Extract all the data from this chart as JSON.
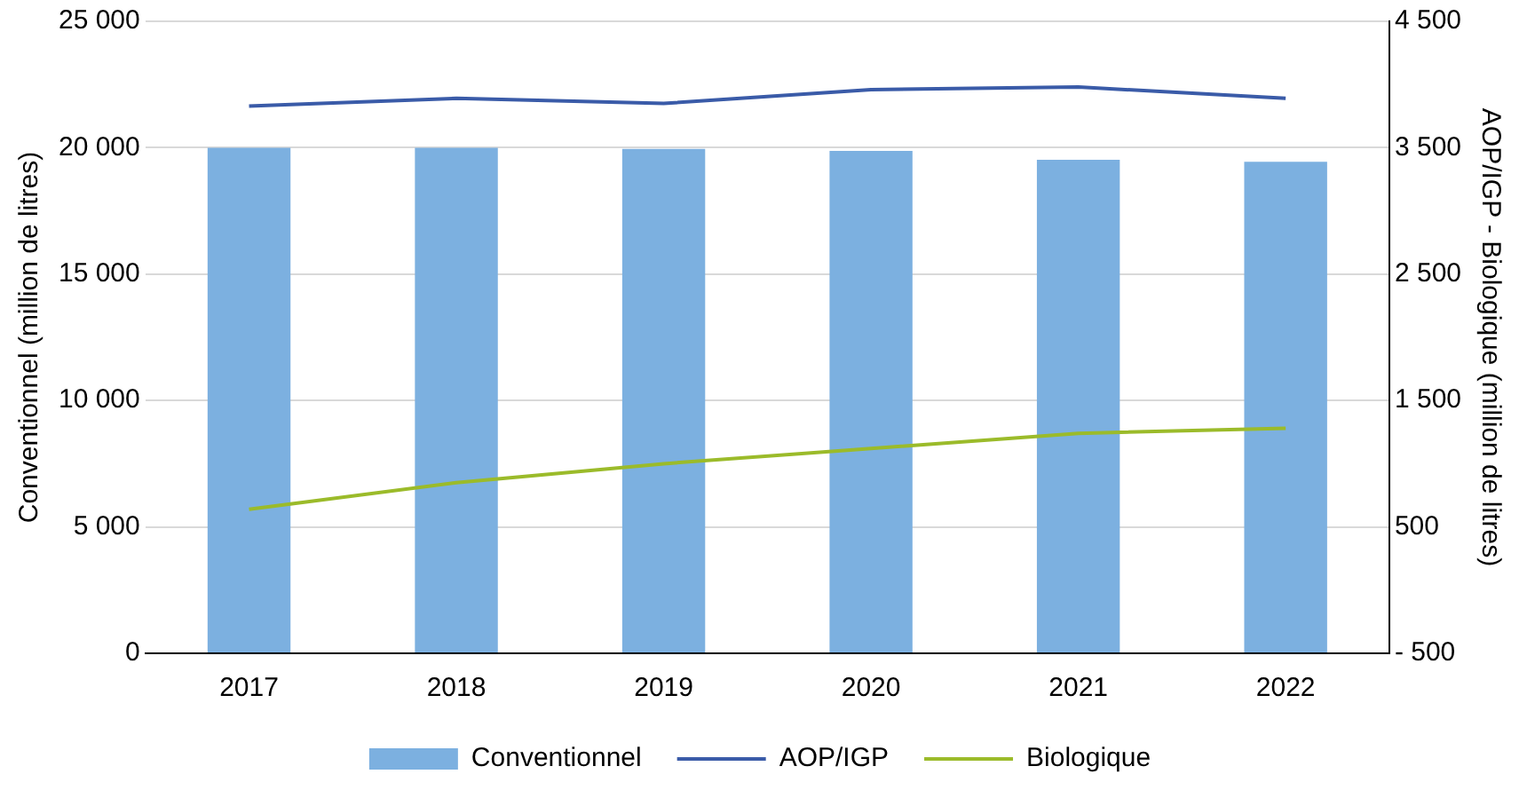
{
  "chart_data": {
    "type": "bar",
    "categories": [
      "2017",
      "2018",
      "2019",
      "2020",
      "2021",
      "2022"
    ],
    "series": [
      {
        "name": "Conventionnel",
        "color": "#7cb0e0",
        "values": [
          20000,
          20000,
          19950,
          19870,
          19520,
          19440
        ]
      },
      {
        "name": "AOP/IGP",
        "type": "line",
        "axis": "y2",
        "color": "#3a5ba8",
        "values": [
          3830,
          3890,
          3850,
          3960,
          3980,
          3890
        ]
      },
      {
        "name": "Biologique",
        "type": "line",
        "axis": "y2",
        "color": "#9bbb2a",
        "values": [
          640,
          850,
          1000,
          1120,
          1240,
          1280
        ]
      }
    ],
    "ylabel": "Conventionnel (million de litres)",
    "y2label": "AOP/IGP - Biologique (million de litres)",
    "ylim": [
      0,
      25000
    ],
    "yticks": [
      {
        "value": 0,
        "label": "0"
      },
      {
        "value": 5000,
        "label": "5 000"
      },
      {
        "value": 10000,
        "label": "10 000"
      },
      {
        "value": 15000,
        "label": "15 000"
      },
      {
        "value": 20000,
        "label": "20 000"
      },
      {
        "value": 25000,
        "label": "25 000"
      }
    ],
    "y2lim": [
      -500,
      4500
    ],
    "y2ticks": [
      {
        "value": -500,
        "label": "- 500"
      },
      500,
      {
        "value": 1500,
        "label": "1 500"
      },
      {
        "value": 2500,
        "label": "2 500"
      },
      {
        "value": 3500,
        "label": "3 500"
      },
      {
        "value": 4500,
        "label": "4 500"
      }
    ],
    "grid": "y",
    "legend": "bottom",
    "marker": "none",
    "line_style": "solid"
  }
}
